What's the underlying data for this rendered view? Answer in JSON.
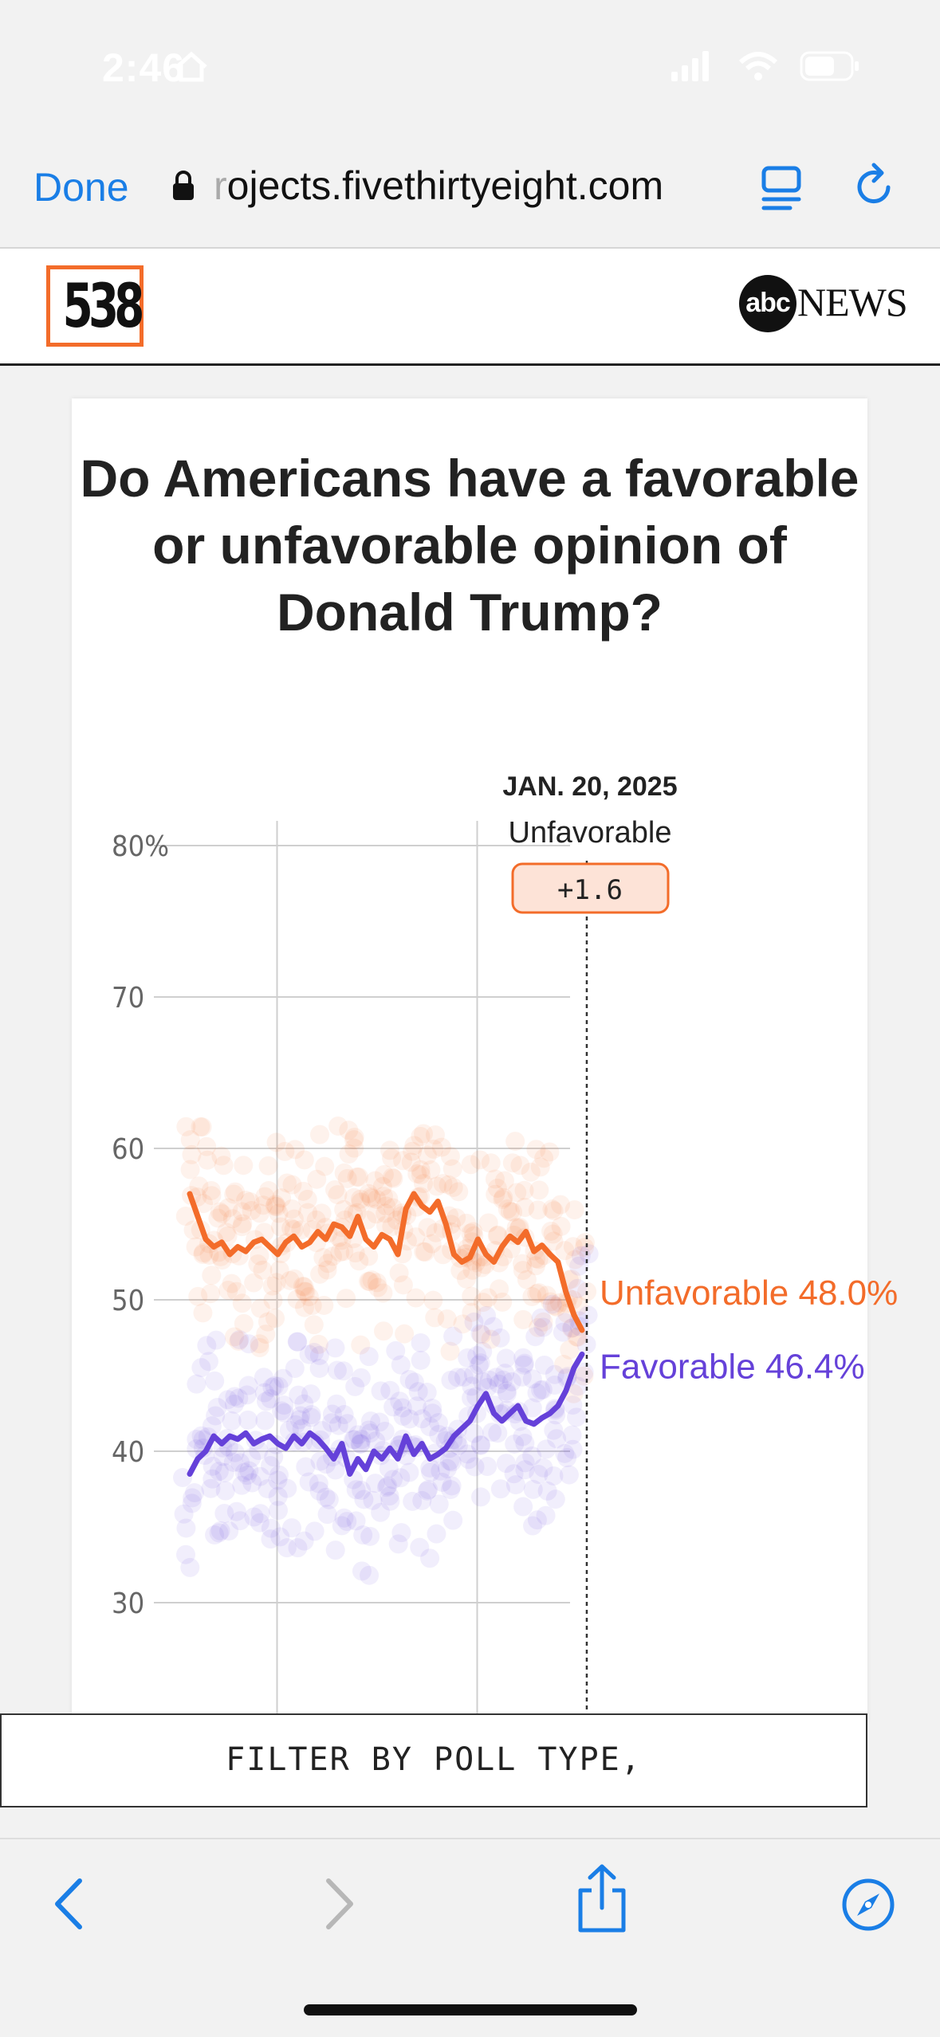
{
  "status": {
    "time": "2:46"
  },
  "browser": {
    "done_label": "Done",
    "url_faded": "r",
    "url": "ojects.fivethirtyeight.com",
    "accent": "#1a7ee6"
  },
  "site": {
    "logo_text": "538",
    "partner_mark": "abc",
    "partner_word": "NEWS",
    "logo_color": "#f36c2a"
  },
  "card": {
    "title": "Do Americans have a favorable or unfavorable opinion of Donald Trump?"
  },
  "chart_data": {
    "type": "line",
    "title": "Do Americans have a favorable or unfavorable opinion of Donald Trump?",
    "ylim": [
      22,
      80
    ],
    "yticks": [
      {
        "v": 80,
        "label": "80%"
      },
      {
        "v": 70,
        "label": "70"
      },
      {
        "v": 60,
        "label": "60"
      },
      {
        "v": 50,
        "label": "50"
      },
      {
        "v": 40,
        "label": "40"
      },
      {
        "v": 30,
        "label": "30"
      }
    ],
    "x_range": [
      0,
      100
    ],
    "vertical_gridlines_x": [
      25,
      75
    ],
    "marker": {
      "x": 98,
      "date": "JAN. 20, 2025",
      "series": "Unfavorable",
      "margin": "+1.6"
    },
    "series": [
      {
        "name": "Unfavorable",
        "color": "#f36c2a",
        "end_label": "Unfavorable 48.0%",
        "x": [
          0,
          2,
          4,
          6,
          8,
          10,
          12,
          14,
          16,
          18,
          20,
          22,
          24,
          26,
          28,
          30,
          32,
          34,
          36,
          38,
          40,
          42,
          44,
          46,
          48,
          50,
          52,
          54,
          56,
          58,
          60,
          62,
          64,
          66,
          68,
          70,
          72,
          74,
          76,
          78,
          80,
          82,
          84,
          86,
          88,
          90,
          92,
          94,
          96,
          98
        ],
        "values": [
          57,
          55.5,
          54,
          53.5,
          53.8,
          53,
          53.5,
          53.2,
          53.8,
          54,
          53.5,
          53,
          53.8,
          54.2,
          53.5,
          53.8,
          54.5,
          54,
          55,
          54.8,
          54.2,
          55.5,
          54,
          53.5,
          54.3,
          54,
          53,
          56,
          57,
          56.2,
          55.8,
          56.5,
          55,
          53,
          52.5,
          52.8,
          54,
          53,
          52.5,
          53.5,
          54.2,
          53.8,
          54.5,
          53.2,
          53.6,
          53,
          52.5,
          50.5,
          49,
          48
        ]
      },
      {
        "name": "Favorable",
        "color": "#6541d9",
        "end_label": "Favorable 46.4%",
        "x": [
          0,
          2,
          4,
          6,
          8,
          10,
          12,
          14,
          16,
          18,
          20,
          22,
          24,
          26,
          28,
          30,
          32,
          34,
          36,
          38,
          40,
          42,
          44,
          46,
          48,
          50,
          52,
          54,
          56,
          58,
          60,
          62,
          64,
          66,
          68,
          70,
          72,
          74,
          76,
          78,
          80,
          82,
          84,
          86,
          88,
          90,
          92,
          94,
          96,
          98
        ],
        "values": [
          38.5,
          39.5,
          40,
          41,
          40.5,
          41,
          40.8,
          41.2,
          40.5,
          40.8,
          41,
          40.5,
          40.2,
          41,
          40.5,
          41.2,
          40.8,
          40.2,
          39.5,
          40.5,
          38.5,
          39.5,
          38.8,
          40,
          39.5,
          40.2,
          39.5,
          41,
          39.8,
          40.5,
          39.5,
          39.8,
          40.2,
          41,
          41.5,
          42,
          43,
          43.8,
          42.5,
          42,
          42.5,
          43,
          42,
          41.8,
          42.2,
          42.5,
          43,
          44,
          45.5,
          46.4
        ]
      }
    ],
    "grid": true
  },
  "filter": {
    "label": "FILTER BY POLL TYPE,"
  },
  "toolbar": {
    "back": "back-icon",
    "forward": "forward-icon",
    "share": "share-icon",
    "compass": "compass-icon"
  }
}
